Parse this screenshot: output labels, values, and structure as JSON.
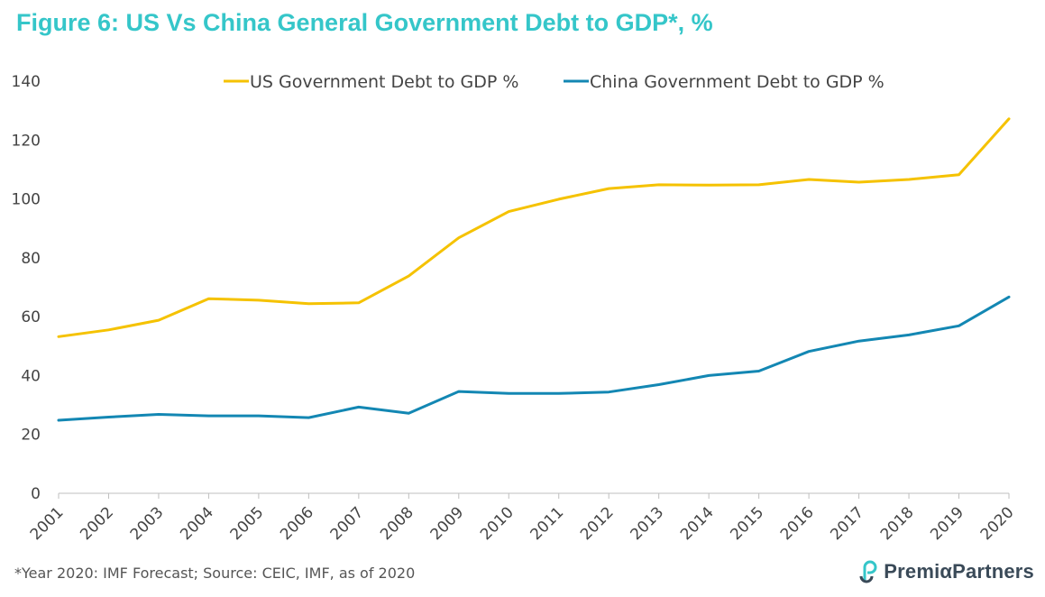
{
  "title": "Figure 6: US Vs China General Government Debt to GDP*, %",
  "footnote": "*Year 2020: IMF Forecast; Source: CEIC, IMF, as of 2020",
  "logo": {
    "text": "PremiαPartners",
    "icon": "premia-logo-icon"
  },
  "colors": {
    "title": "#35c6c9",
    "us": "#f5c200",
    "china": "#1387b3",
    "axis": "#bfbfbf",
    "text": "#444444"
  },
  "chart_data": {
    "type": "line",
    "title": "Figure 6: US Vs China General Government Debt to GDP*, %",
    "xlabel": "",
    "ylabel": "",
    "x": [
      "2001",
      "2002",
      "2003",
      "2004",
      "2005",
      "2006",
      "2007",
      "2008",
      "2009",
      "2010",
      "2011",
      "2012",
      "2013",
      "2014",
      "2015",
      "2016",
      "2017",
      "2018",
      "2019",
      "2020"
    ],
    "ylim": [
      0,
      140
    ],
    "yticks": [
      0,
      20,
      40,
      60,
      80,
      100,
      120,
      140
    ],
    "grid": false,
    "legend_position": "top-center",
    "series": [
      {
        "name": "US Government Debt to GDP %",
        "color": "#f5c200",
        "values": [
          53.2,
          55.5,
          58.8,
          66.1,
          65.6,
          64.4,
          64.7,
          73.8,
          86.8,
          95.7,
          99.9,
          103.5,
          104.8,
          104.7,
          104.8,
          106.6,
          105.7,
          106.6,
          108.2,
          127.2
        ]
      },
      {
        "name": "China Government Debt to GDP %",
        "color": "#1387b3",
        "values": [
          24.8,
          25.9,
          26.8,
          26.3,
          26.3,
          25.7,
          29.3,
          27.2,
          34.6,
          33.9,
          33.9,
          34.4,
          36.9,
          40.0,
          41.5,
          48.2,
          51.7,
          53.8,
          56.9,
          66.7
        ]
      }
    ]
  }
}
